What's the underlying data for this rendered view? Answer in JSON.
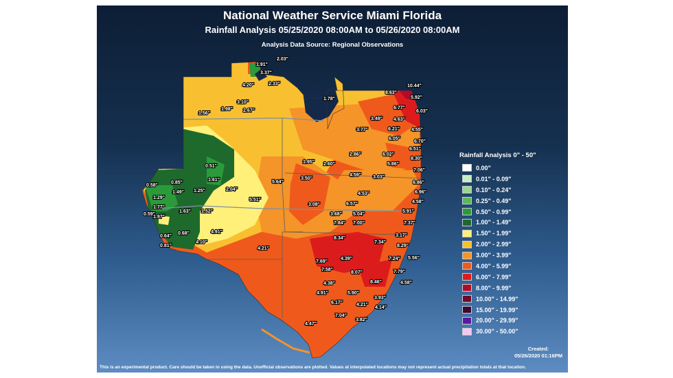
{
  "header": {
    "title": "National Weather Service Miami Florida",
    "subtitle": "Rainfall Analysis 05/25/2020 08:00AM to 05/26/2020 08:00AM",
    "source": "Analysis Data Source: Regional Observations"
  },
  "legend": {
    "title": "Rainfall Analysis 0\" - 50\"",
    "items": [
      {
        "range": "0.00\"",
        "color": "#ffffff"
      },
      {
        "range": "0.01\" - 0.09\"",
        "color": "#c8ecc4"
      },
      {
        "range": "0.10\" - 0.24\"",
        "color": "#98d690"
      },
      {
        "range": "0.25\" - 0.49\"",
        "color": "#5cb85a"
      },
      {
        "range": "0.50\" - 0.99\"",
        "color": "#2c9a3a"
      },
      {
        "range": "1.00\" - 1.49\"",
        "color": "#1e6a2c"
      },
      {
        "range": "1.50\" - 1.99\"",
        "color": "#fff07a"
      },
      {
        "range": "2.00\" - 2.99\"",
        "color": "#f8c030"
      },
      {
        "range": "3.00\" - 3.99\"",
        "color": "#f59428"
      },
      {
        "range": "4.00\" - 5.99\"",
        "color": "#ef5a1c"
      },
      {
        "range": "6.00\" - 7.99\"",
        "color": "#dc1c1c"
      },
      {
        "range": "8.00\" - 9.99\"",
        "color": "#b40a2a"
      },
      {
        "range": "10.00\" - 14.99\"",
        "color": "#6e0a2a"
      },
      {
        "range": "15.00\" - 19.99\"",
        "color": "#3a0a34"
      },
      {
        "range": "20.00\" - 29.99\"",
        "color": "#5a1aa0"
      },
      {
        "range": "30.00\" - 50.00\"",
        "color": "#f4c8f0"
      }
    ]
  },
  "map": {
    "rainfall_labels": [
      "1.91\"",
      "2.03\"",
      "3.37\"",
      "4.20\"",
      "2.33\"",
      "3.10\"",
      "1.78\"",
      "8.63\"",
      "10.44\"",
      "5.92\"",
      "1.56\"",
      "1.98\"",
      "2.67\"",
      "6.77\"",
      "6.03\"",
      "3.49\"",
      "4.63\"",
      "3.77\"",
      "6.21\"",
      "4.55\"",
      "6.05\"",
      "6.70\"",
      "6.51\"",
      "8.30\"",
      "2.86\"",
      "6.02\"",
      "0.51\"",
      "1.95\"",
      "2.60\"",
      "5.86\"",
      "7.06\"",
      "0.85\"",
      "1.61\"",
      "3.50\"",
      "5.64\"",
      "4.59\"",
      "3.03\"",
      "6.86\"",
      "0.58\"",
      "1.49\"",
      "1.25\"",
      "2.04\"",
      "6.96\"",
      "1.29\"",
      "5.51\"",
      "4.53\"",
      "4.58\"",
      "1.77\"",
      "3.08\"",
      "6.57\"",
      "0.59\"",
      "1.97\"",
      "1.63\"",
      "1.52\"",
      "3.68\"",
      "5.04\"",
      "5.91\"",
      "7.84\"",
      "7.00\"",
      "7.37\"",
      "4.91\"",
      "0.64\"",
      "0.68\"",
      "8.34\"",
      "3.17\"",
      "4.10\"",
      "7.34\"",
      "8.29\"",
      "0.81\"",
      "4.21\"",
      "7.69\"",
      "4.39\"",
      "7.24\"",
      "5.56\"",
      "7.58\"",
      "8.07\"",
      "7.79\"",
      "8.46\"",
      "4.58\"",
      "4.38\"",
      "4.91\"",
      "5.90\"",
      "3.93\"",
      "6.17\"",
      "4.21\"",
      "4.14\"",
      "7.04\"",
      "4.47\"",
      "3.82\""
    ]
  },
  "footer": {
    "created_label": "Created:",
    "created_time": "05/26/2020 01:16PM",
    "disclaimer": "This is an experimental product. Care should be taken in using the data. Unofficial observations are plotted. Values at interpolated locations may not represent actual precipitation totals at that location."
  }
}
